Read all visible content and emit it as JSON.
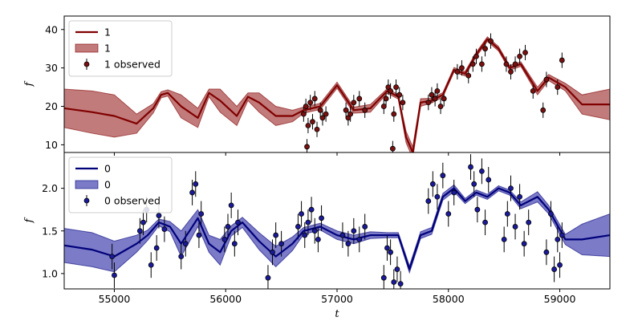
{
  "chart_data": [
    {
      "type": "line",
      "panel": "top",
      "xlabel": "",
      "ylabel": "f",
      "xlim": [
        54550,
        59450
      ],
      "ylim": [
        8,
        43.5
      ],
      "xticks": [
        55000,
        56000,
        57000,
        58000,
        59000
      ],
      "yticks": [
        10,
        20,
        30,
        40
      ],
      "grid": false,
      "legend_position": "top-left",
      "colors": {
        "line": "#800000",
        "band": "#b35a5a",
        "points": "#7a1010"
      },
      "legend": [
        "1",
        "1",
        "1 observed"
      ],
      "series": [
        {
          "name": "1",
          "kind": "model",
          "x": [
            54550,
            54800,
            55000,
            55200,
            55350,
            55420,
            55480,
            55600,
            55750,
            55850,
            55950,
            56100,
            56200,
            56300,
            56450,
            56600,
            56700,
            56850,
            57000,
            57150,
            57300,
            57450,
            57550,
            57620,
            57680,
            57750,
            57850,
            57950,
            58050,
            58150,
            58250,
            58350,
            58450,
            58550,
            58650,
            58800,
            58900,
            59050,
            59200,
            59450
          ],
          "y": [
            19.5,
            18.5,
            17.5,
            15.5,
            19.5,
            23.0,
            23.5,
            20.0,
            17.0,
            23.5,
            21.5,
            17.5,
            22.5,
            21.0,
            17.5,
            17.5,
            19.0,
            20.0,
            25.5,
            19.0,
            19.5,
            24.0,
            22.5,
            12.0,
            8.0,
            21.0,
            21.5,
            23.0,
            29.5,
            28.5,
            33.5,
            37.5,
            35.0,
            30.0,
            31.0,
            24.0,
            27.5,
            25.0,
            20.5,
            20.5
          ],
          "band_width": [
            5.0,
            5.5,
            5.5,
            2.5,
            1.2,
            0.8,
            0.8,
            3.0,
            2.5,
            1.0,
            3.0,
            2.5,
            1.0,
            2.5,
            2.5,
            1.5,
            0.8,
            0.8,
            0.8,
            0.8,
            1.0,
            0.6,
            0.6,
            1.5,
            1.5,
            1.0,
            0.6,
            0.6,
            0.6,
            0.6,
            0.6,
            0.6,
            0.6,
            0.6,
            0.6,
            1.0,
            0.8,
            1.0,
            2.5,
            4.0
          ]
        },
        {
          "name": "1 observed",
          "kind": "observed",
          "points": [
            [
              56700,
              18,
              2
            ],
            [
              56720,
              20,
              2
            ],
            [
              56730,
              9.5,
              2
            ],
            [
              56740,
              15,
              2
            ],
            [
              56760,
              21,
              2
            ],
            [
              56780,
              16,
              2
            ],
            [
              56800,
              22,
              2
            ],
            [
              56820,
              14,
              2
            ],
            [
              56850,
              19,
              2
            ],
            [
              56870,
              17,
              2
            ],
            [
              56900,
              18,
              2
            ],
            [
              57080,
              19,
              2
            ],
            [
              57100,
              17,
              2
            ],
            [
              57120,
              18,
              2
            ],
            [
              57150,
              21,
              2
            ],
            [
              57200,
              22,
              2
            ],
            [
              57250,
              19,
              2
            ],
            [
              57420,
              20,
              2
            ],
            [
              57440,
              22,
              2
            ],
            [
              57460,
              25,
              2
            ],
            [
              57480,
              24,
              2
            ],
            [
              57500,
              9,
              2
            ],
            [
              57510,
              18,
              2
            ],
            [
              57530,
              25,
              2
            ],
            [
              57560,
              23,
              2
            ],
            [
              57590,
              21,
              2
            ],
            [
              57820,
              21,
              2
            ],
            [
              57850,
              23,
              2
            ],
            [
              57880,
              22,
              2
            ],
            [
              57900,
              24,
              2
            ],
            [
              57930,
              20,
              2
            ],
            [
              57960,
              22,
              2
            ],
            [
              58080,
              29,
              2
            ],
            [
              58120,
              30,
              2
            ],
            [
              58180,
              28,
              2
            ],
            [
              58220,
              31,
              2
            ],
            [
              58250,
              33,
              2
            ],
            [
              58300,
              31,
              2
            ],
            [
              58330,
              35,
              2
            ],
            [
              58380,
              37,
              2
            ],
            [
              58520,
              31,
              2
            ],
            [
              58560,
              29,
              2
            ],
            [
              58600,
              31,
              2
            ],
            [
              58640,
              33,
              2
            ],
            [
              58690,
              34,
              2
            ],
            [
              58760,
              24,
              2
            ],
            [
              58850,
              19,
              2
            ],
            [
              58880,
              27,
              2
            ],
            [
              58980,
              25,
              2
            ],
            [
              59020,
              32,
              2
            ]
          ]
        }
      ]
    },
    {
      "type": "line",
      "panel": "bottom",
      "xlabel": "t",
      "ylabel": "f",
      "xlim": [
        54550,
        59450
      ],
      "ylim": [
        0.82,
        2.42
      ],
      "xticks": [
        55000,
        56000,
        57000,
        58000,
        59000
      ],
      "yticks": [
        1.0,
        1.5,
        2.0
      ],
      "grid": false,
      "legend_position": "top-left",
      "colors": {
        "line": "#00007a",
        "band": "#5a5aba",
        "points": "#1a1a9a"
      },
      "legend": [
        "0",
        "0",
        "0 observed"
      ],
      "series": [
        {
          "name": "0",
          "kind": "model",
          "x": [
            54550,
            54800,
            55000,
            55200,
            55300,
            55400,
            55500,
            55600,
            55750,
            55850,
            55950,
            56050,
            56150,
            56300,
            56450,
            56600,
            56700,
            56850,
            57000,
            57150,
            57300,
            57450,
            57550,
            57650,
            57750,
            57850,
            57950,
            58050,
            58150,
            58250,
            58350,
            58450,
            58550,
            58650,
            58800,
            58900,
            59050,
            59200,
            59450
          ],
          "y": [
            1.33,
            1.28,
            1.2,
            1.35,
            1.45,
            1.6,
            1.55,
            1.35,
            1.65,
            1.35,
            1.25,
            1.5,
            1.6,
            1.38,
            1.2,
            1.35,
            1.5,
            1.55,
            1.45,
            1.4,
            1.45,
            1.45,
            1.45,
            1.05,
            1.45,
            1.5,
            1.9,
            2.0,
            1.85,
            1.95,
            1.9,
            2.0,
            1.95,
            1.8,
            1.9,
            1.75,
            1.4,
            1.4,
            1.45
          ],
          "band_width": [
            0.2,
            0.2,
            0.18,
            0.1,
            0.06,
            0.04,
            0.06,
            0.15,
            0.1,
            0.1,
            0.15,
            0.06,
            0.06,
            0.1,
            0.12,
            0.08,
            0.04,
            0.04,
            0.05,
            0.05,
            0.04,
            0.03,
            0.03,
            0.04,
            0.04,
            0.04,
            0.04,
            0.04,
            0.03,
            0.03,
            0.03,
            0.03,
            0.03,
            0.04,
            0.06,
            0.05,
            0.06,
            0.18,
            0.25
          ]
        },
        {
          "name": "0 observed",
          "kind": "observed",
          "points": [
            [
              54980,
              1.2,
              0.15
            ],
            [
              55000,
              0.98,
              0.15
            ],
            [
              55230,
              1.5,
              0.15
            ],
            [
              55260,
              1.6,
              0.15
            ],
            [
              55290,
              1.75,
              0.15
            ],
            [
              55330,
              1.1,
              0.15
            ],
            [
              55380,
              1.3,
              0.15
            ],
            [
              55400,
              1.68,
              0.15
            ],
            [
              55450,
              1.52,
              0.15
            ],
            [
              55600,
              1.2,
              0.15
            ],
            [
              55640,
              1.35,
              0.15
            ],
            [
              55700,
              1.95,
              0.15
            ],
            [
              55730,
              2.05,
              0.15
            ],
            [
              55760,
              1.45,
              0.15
            ],
            [
              55780,
              1.7,
              0.15
            ],
            [
              55990,
              1.4,
              0.15
            ],
            [
              56020,
              1.55,
              0.15
            ],
            [
              56050,
              1.8,
              0.15
            ],
            [
              56080,
              1.35,
              0.15
            ],
            [
              56110,
              1.6,
              0.15
            ],
            [
              56380,
              0.95,
              0.15
            ],
            [
              56420,
              1.25,
              0.15
            ],
            [
              56450,
              1.45,
              0.15
            ],
            [
              56500,
              1.35,
              0.15
            ],
            [
              56650,
              1.55,
              0.15
            ],
            [
              56680,
              1.7,
              0.15
            ],
            [
              56710,
              1.45,
              0.15
            ],
            [
              56740,
              1.6,
              0.15
            ],
            [
              56770,
              1.75,
              0.15
            ],
            [
              56800,
              1.5,
              0.15
            ],
            [
              56830,
              1.4,
              0.15
            ],
            [
              56860,
              1.65,
              0.15
            ],
            [
              57050,
              1.45,
              0.15
            ],
            [
              57100,
              1.35,
              0.15
            ],
            [
              57150,
              1.5,
              0.15
            ],
            [
              57200,
              1.4,
              0.15
            ],
            [
              57250,
              1.55,
              0.15
            ],
            [
              57420,
              0.95,
              0.15
            ],
            [
              57450,
              1.3,
              0.15
            ],
            [
              57480,
              1.25,
              0.15
            ],
            [
              57510,
              0.9,
              0.15
            ],
            [
              57540,
              1.05,
              0.15
            ],
            [
              57570,
              0.88,
              0.15
            ],
            [
              57820,
              1.85,
              0.15
            ],
            [
              57860,
              2.05,
              0.15
            ],
            [
              57900,
              1.9,
              0.15
            ],
            [
              57950,
              2.15,
              0.15
            ],
            [
              58000,
              1.7,
              0.15
            ],
            [
              58050,
              1.95,
              0.15
            ],
            [
              58200,
              2.25,
              0.15
            ],
            [
              58230,
              2.05,
              0.15
            ],
            [
              58260,
              1.75,
              0.15
            ],
            [
              58300,
              2.2,
              0.15
            ],
            [
              58330,
              1.6,
              0.15
            ],
            [
              58360,
              2.1,
              0.15
            ],
            [
              58500,
              1.4,
              0.15
            ],
            [
              58530,
              1.7,
              0.15
            ],
            [
              58560,
              2.0,
              0.15
            ],
            [
              58600,
              1.55,
              0.15
            ],
            [
              58640,
              1.9,
              0.15
            ],
            [
              58680,
              1.35,
              0.15
            ],
            [
              58720,
              1.6,
              0.15
            ],
            [
              58880,
              1.25,
              0.15
            ],
            [
              58920,
              1.7,
              0.15
            ],
            [
              58950,
              1.05,
              0.15
            ],
            [
              58980,
              1.4,
              0.15
            ],
            [
              59000,
              1.1,
              0.15
            ],
            [
              59020,
              1.45,
              0.15
            ]
          ]
        }
      ]
    }
  ]
}
